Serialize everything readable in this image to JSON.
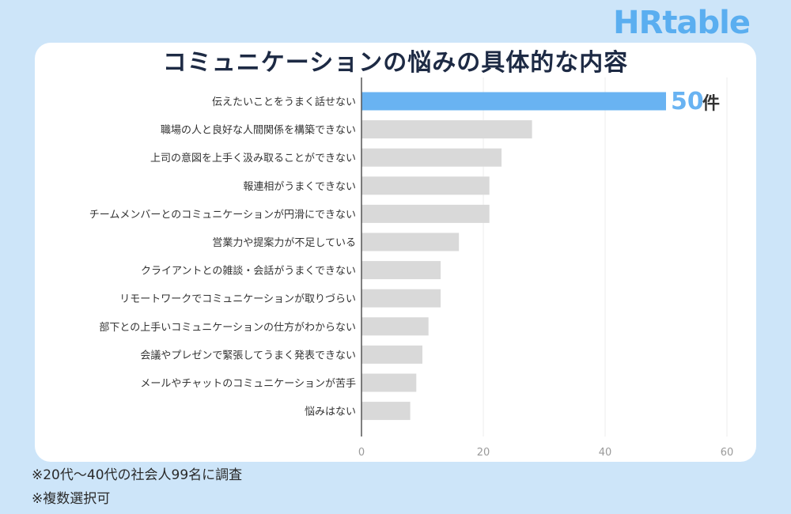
{
  "brand": "HRtable",
  "chart_data": {
    "type": "bar",
    "orientation": "horizontal",
    "title": "コミュニケーションの悩みの具体的な内容",
    "categories": [
      "伝えたいことをうまく話せない",
      "職場の人と良好な人間関係を構築できない",
      "上司の意図を上手く汲み取ることができない",
      "報連相がうまくできない",
      "チームメンバーとのコミュニケーションが円滑にできない",
      "営業力や提案力が不足している",
      "クライアントとの雑談・会話がうまくできない",
      "リモートワークでコミュニケーションが取りづらい",
      "部下との上手いコミュニケーションの仕方がわからない",
      "会議やプレゼンで緊張してうまく発表できない",
      "メールやチャットのコミュニケーションが苦手",
      "悩みはない"
    ],
    "values": [
      50,
      28,
      23,
      21,
      21,
      16,
      13,
      13,
      11,
      10,
      9,
      8
    ],
    "xlim": [
      0,
      60
    ],
    "xticks": [
      0,
      20,
      40,
      60
    ],
    "grid": true,
    "highlight_label": {
      "value": "50",
      "unit": "件"
    },
    "colors": {
      "highlight": "#69b3f2",
      "default": "#d9d9d9"
    }
  },
  "notes": [
    "※20代〜40代の社会人99名に調査",
    "※複数選択可"
  ]
}
